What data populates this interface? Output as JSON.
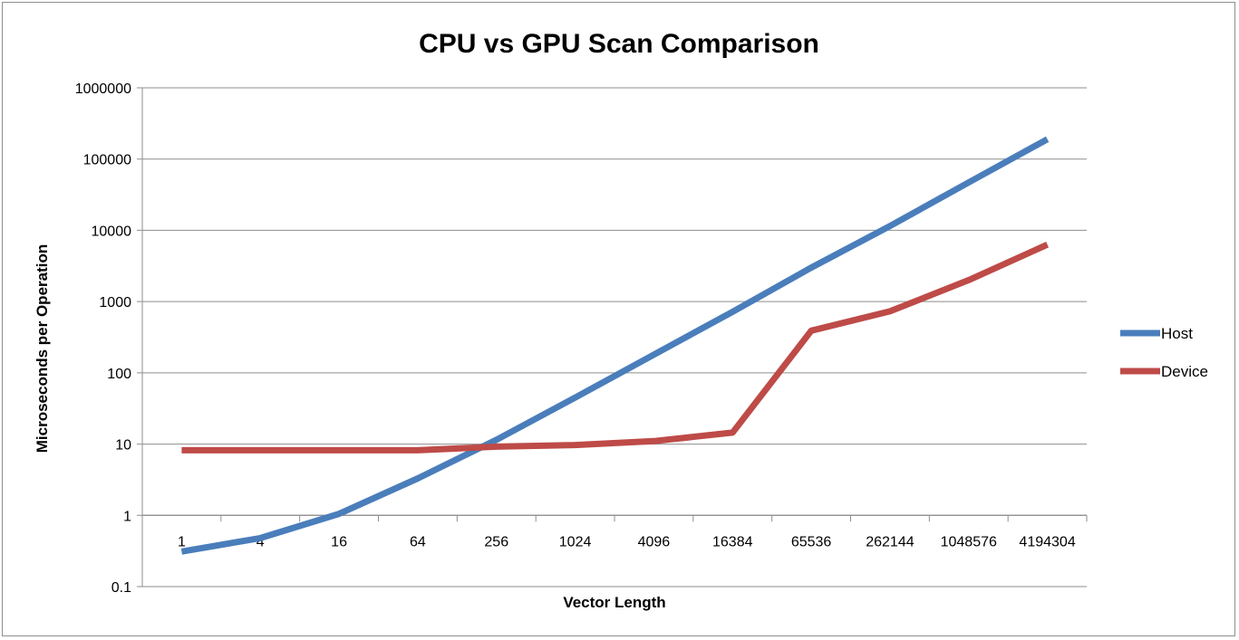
{
  "chart_data": {
    "type": "line",
    "title": "CPU vs GPU Scan Comparison",
    "xlabel": "Vector Length",
    "ylabel": "Microseconds per Operation",
    "y_scale": "log",
    "ylim": [
      0.1,
      1000000
    ],
    "y_ticks": [
      "0.1",
      "1",
      "10",
      "100",
      "1000",
      "10000",
      "100000",
      "1000000"
    ],
    "categories": [
      "1",
      "4",
      "16",
      "64",
      "256",
      "1024",
      "4096",
      "16384",
      "65536",
      "262144",
      "1048576",
      "4194304"
    ],
    "grid": true,
    "legend_position": "right",
    "series": [
      {
        "name": "Host",
        "color": "#4a7ebb",
        "values": [
          0.31,
          0.48,
          1.05,
          3.3,
          11.5,
          45,
          180,
          720,
          3000,
          11500,
          47000,
          190000
        ]
      },
      {
        "name": "Device",
        "color": "#be4b48",
        "values": [
          8.2,
          8.2,
          8.2,
          8.2,
          9.2,
          9.7,
          11,
          14.5,
          390,
          730,
          2000,
          6300
        ]
      }
    ]
  }
}
